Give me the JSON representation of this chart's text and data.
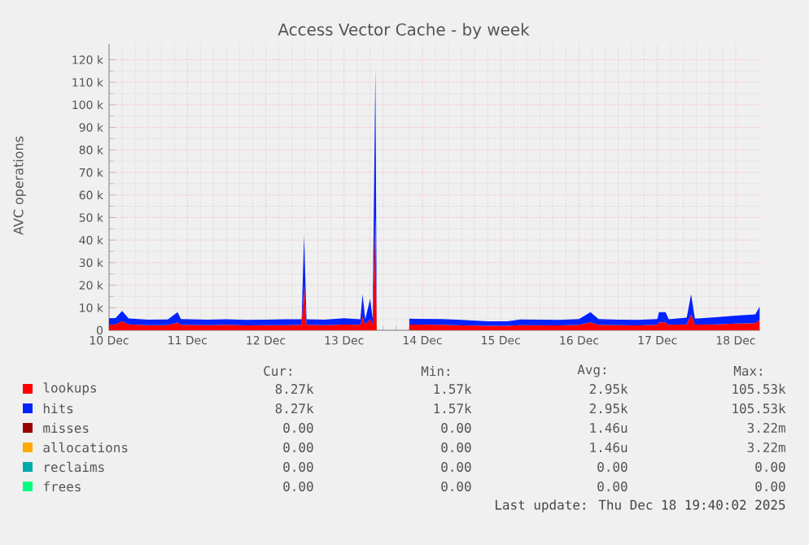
{
  "chart_data": {
    "type": "area",
    "title": "Access Vector Cache - by week",
    "ylabel": "AVC operations",
    "stacked": true,
    "grid": true,
    "legend": "bottom",
    "xlim": [
      "2025-12-10T00:00",
      "2025-12-18T07:30"
    ],
    "xticks": [
      {
        "value": "2025-12-10",
        "label": "10 Dec"
      },
      {
        "value": "2025-12-11",
        "label": "11 Dec"
      },
      {
        "value": "2025-12-12",
        "label": "12 Dec"
      },
      {
        "value": "2025-12-13",
        "label": "13 Dec"
      },
      {
        "value": "2025-12-14",
        "label": "14 Dec"
      },
      {
        "value": "2025-12-15",
        "label": "15 Dec"
      },
      {
        "value": "2025-12-16",
        "label": "16 Dec"
      },
      {
        "value": "2025-12-17",
        "label": "17 Dec"
      },
      {
        "value": "2025-12-18",
        "label": "18 Dec"
      }
    ],
    "ylim": [
      0,
      127000
    ],
    "yticks": [
      0,
      {
        "value": 10000,
        "label": "10 k"
      },
      {
        "value": 20000,
        "label": "20 k"
      },
      {
        "value": 30000,
        "label": "30 k"
      },
      {
        "value": 40000,
        "label": "40 k"
      },
      {
        "value": 50000,
        "label": "50 k"
      },
      {
        "value": 60000,
        "label": "60 k"
      },
      {
        "value": 70000,
        "label": "70 k"
      },
      {
        "value": 80000,
        "label": "80 k"
      },
      {
        "value": 90000,
        "label": "90 k"
      },
      {
        "value": 100000,
        "label": "100 k"
      },
      {
        "value": 110000,
        "label": "110 k"
      },
      {
        "value": 120000,
        "label": "120 k"
      }
    ],
    "x": [
      "2025-12-10T00:00",
      "2025-12-10T02:00",
      "2025-12-10T04:00",
      "2025-12-10T06:00",
      "2025-12-10T12:00",
      "2025-12-10T18:00",
      "2025-12-10T21:00",
      "2025-12-10T22:00",
      "2025-12-11T06:00",
      "2025-12-11T12:00",
      "2025-12-11T18:00",
      "2025-12-12T00:00",
      "2025-12-12T06:00",
      "2025-12-12T11:00",
      "2025-12-12T11:45",
      "2025-12-12T12:30",
      "2025-12-12T18:00",
      "2025-12-13T00:00",
      "2025-12-13T05:00",
      "2025-12-13T05:40",
      "2025-12-13T06:30",
      "2025-12-13T08:00",
      "2025-12-13T08:45",
      "2025-12-13T09:36",
      "2025-12-13T10:00",
      "2025-12-13T15:00",
      "2025-12-13T20:00",
      "2025-12-14T06:00",
      "2025-12-14T12:00",
      "2025-12-14T20:00",
      "2025-12-15T02:00",
      "2025-12-15T06:00",
      "2025-12-15T18:00",
      "2025-12-16T00:00",
      "2025-12-16T03:30",
      "2025-12-16T06:00",
      "2025-12-16T12:00",
      "2025-12-16T18:00",
      "2025-12-17T00:00",
      "2025-12-17T00:30",
      "2025-12-17T02:30",
      "2025-12-17T03:30",
      "2025-12-17T09:00",
      "2025-12-17T10:20",
      "2025-12-17T11:30",
      "2025-12-17T18:00",
      "2025-12-18T00:00",
      "2025-12-18T06:00",
      "2025-12-18T07:20"
    ],
    "series": [
      {
        "name": "lookups",
        "color": "#ff0000",
        "values": [
          2500,
          2600,
          4000,
          2600,
          2300,
          2300,
          3500,
          2400,
          2300,
          2400,
          2200,
          2300,
          2300,
          2400,
          20000,
          2400,
          2300,
          2500,
          2400,
          6000,
          2400,
          5000,
          2500,
          50000,
          2500,
          null,
          2500,
          2400,
          2200,
          2000,
          2000,
          2300,
          2200,
          2400,
          3500,
          2400,
          2300,
          2200,
          2400,
          3500,
          3500,
          2400,
          2600,
          7000,
          2500,
          2600,
          3000,
          3200,
          4500
        ]
      },
      {
        "name": "hits",
        "color": "#0022ff",
        "values": [
          2800,
          2800,
          4600,
          2600,
          2400,
          2500,
          4500,
          2600,
          2400,
          2500,
          2400,
          2400,
          2600,
          2500,
          22000,
          2500,
          2400,
          2800,
          2500,
          10000,
          2500,
          9000,
          2600,
          66000,
          2600,
          null,
          2600,
          2600,
          2400,
          2000,
          2000,
          2500,
          2400,
          2600,
          4500,
          2600,
          2400,
          2400,
          2600,
          4500,
          4500,
          2500,
          3000,
          9000,
          2600,
          3200,
          3500,
          3800,
          6000
        ]
      },
      {
        "name": "misses",
        "color": "#990000",
        "values": [
          null,
          null,
          null,
          null,
          null,
          null,
          null,
          null,
          null,
          null,
          null,
          null,
          null,
          null,
          null,
          null,
          null,
          null,
          null,
          null,
          null,
          null,
          null,
          null,
          null,
          null,
          null,
          null,
          null,
          null,
          null,
          null,
          null,
          null,
          null,
          null,
          null,
          null,
          null,
          null,
          null,
          null,
          null,
          null,
          null,
          null,
          null,
          null,
          null
        ]
      },
      {
        "name": "allocations",
        "color": "#ffaa00",
        "values": [
          null,
          null,
          null,
          null,
          null,
          null,
          null,
          null,
          null,
          null,
          null,
          null,
          null,
          null,
          null,
          null,
          null,
          null,
          null,
          null,
          null,
          null,
          null,
          null,
          null,
          null,
          null,
          null,
          null,
          null,
          null,
          null,
          null,
          null,
          null,
          null,
          null,
          null,
          null,
          null,
          null,
          null,
          null,
          null,
          null,
          null,
          null,
          null,
          null
        ]
      },
      {
        "name": "reclaims",
        "color": "#00aaaa",
        "values": [
          null,
          null,
          null,
          null,
          null,
          null,
          null,
          null,
          null,
          null,
          null,
          null,
          null,
          null,
          null,
          null,
          null,
          null,
          null,
          null,
          null,
          null,
          null,
          null,
          null,
          null,
          null,
          null,
          null,
          null,
          null,
          null,
          null,
          null,
          null,
          null,
          null,
          null,
          null,
          null,
          null,
          null,
          null,
          null,
          null,
          null,
          null,
          null,
          null
        ]
      },
      {
        "name": "frees",
        "color": "#00ff80",
        "values": [
          null,
          null,
          null,
          null,
          null,
          null,
          null,
          null,
          null,
          null,
          null,
          null,
          null,
          null,
          null,
          null,
          null,
          null,
          null,
          null,
          null,
          null,
          null,
          null,
          null,
          null,
          null,
          null,
          null,
          null,
          null,
          null,
          null,
          null,
          null,
          null,
          null,
          null,
          null,
          null,
          null,
          null,
          null,
          null,
          null,
          null,
          null,
          null,
          null
        ]
      }
    ],
    "annotations": [
      "Cur:",
      "Min:",
      "Avg:",
      "Max:",
      "8.27k",
      "1.57k",
      "2.95k",
      "105.53k",
      "8.27k",
      "1.57k",
      "2.95k",
      "105.53k",
      "0.00",
      "0.00",
      "1.46u",
      "3.22m",
      "0.00",
      "0.00",
      "1.46u",
      "3.22m",
      "0.00",
      "0.00",
      "0.00",
      "0.00",
      "0.00",
      "0.00",
      "0.00",
      "0.00",
      "Last update: Thu Dec 18 19:40:02 2025"
    ]
  }
}
